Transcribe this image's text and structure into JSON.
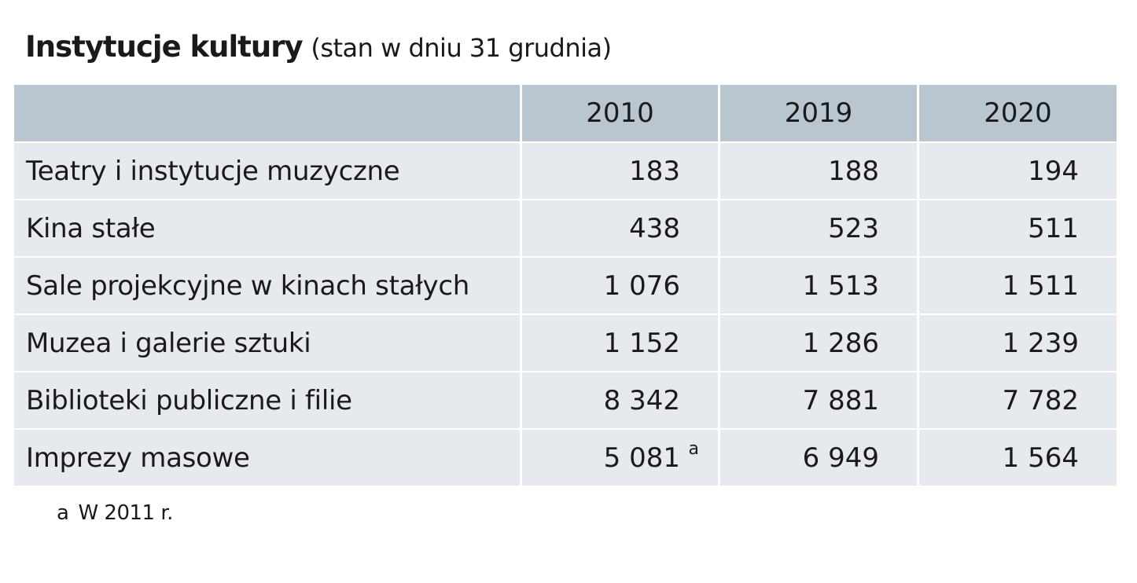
{
  "title": "Instytucje kultury",
  "subtitle": "(stan w dniu 31 grudnia)",
  "table": {
    "columns": [
      "2010",
      "2019",
      "2020"
    ],
    "rows": [
      {
        "label": "Teatry i instytucje muzyczne",
        "values": [
          "183",
          "188",
          "194"
        ]
      },
      {
        "label": "Kina stałe",
        "values": [
          "438",
          "523",
          "511"
        ]
      },
      {
        "label": "Sale projekcyjne w kinach stałych",
        "values": [
          "1 076",
          "1 513",
          "1 511"
        ]
      },
      {
        "label": "Muzea i galerie sztuki",
        "values": [
          "1 152",
          "1 286",
          "1 239"
        ]
      },
      {
        "label": "Biblioteki publiczne i filie",
        "values": [
          "8 342",
          "7 881",
          "7 782"
        ]
      },
      {
        "label": "Imprezy masowe",
        "values": [
          "5 081",
          "6 949",
          "1 564"
        ],
        "note_marker": "a"
      }
    ]
  },
  "footnote": {
    "marker": "a",
    "text": "W 2011 r."
  }
}
